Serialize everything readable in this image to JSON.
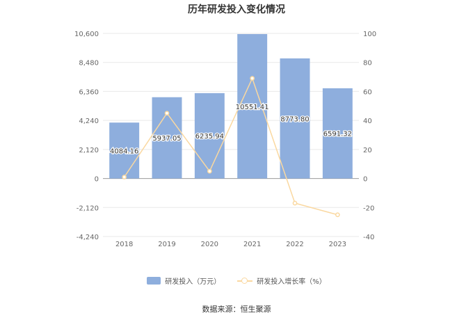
{
  "title": "历年研发投入变化情况",
  "source": "数据来源：恒生聚源",
  "colors": {
    "bar": "#8eaedd",
    "line": "#fad8a0",
    "grid": "#e9e9e9",
    "axis": "#999999"
  },
  "chart_data": {
    "type": "bar+line",
    "categories": [
      "2018",
      "2019",
      "2020",
      "2021",
      "2022",
      "2023"
    ],
    "series": [
      {
        "name": "研发投入（万元）",
        "type": "bar",
        "axis": "left",
        "values": [
          4084.16,
          5937.05,
          6235.94,
          10551.41,
          8773.8,
          6591.32
        ],
        "labels": [
          "4084.16",
          "5937.05",
          "6235.94",
          "10551.41",
          "8773.80",
          "6591.32"
        ]
      },
      {
        "name": "研发投入增长率（%）",
        "type": "line",
        "axis": "right",
        "values": [
          1,
          45,
          5,
          69,
          -17,
          -25
        ]
      }
    ],
    "y_left": {
      "ticks": [
        10600,
        8480,
        6360,
        4240,
        2120,
        0,
        -2120,
        -4240
      ],
      "tick_labels": [
        "10,600",
        "8,480",
        "6,360",
        "4,240",
        "2,120",
        "0",
        "-2,120",
        "-4,240"
      ],
      "range": [
        -4240,
        10600
      ]
    },
    "y_right": {
      "ticks": [
        100,
        80,
        60,
        40,
        20,
        0,
        -20,
        -40
      ],
      "tick_labels": [
        "100",
        "80",
        "60",
        "40",
        "20",
        "0",
        "-20",
        "-40"
      ],
      "range": [
        -40,
        100
      ]
    },
    "grid": true,
    "legend_position": "bottom"
  }
}
